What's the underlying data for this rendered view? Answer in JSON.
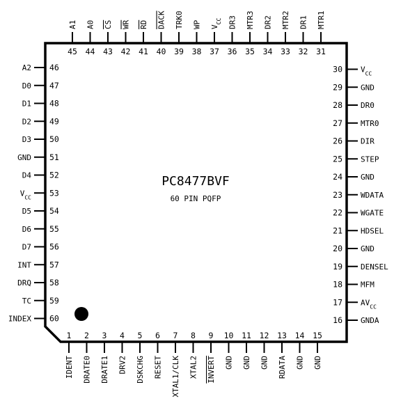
{
  "chip": {
    "part": "PC8477BVF",
    "package": "60 PIN PQFP"
  },
  "pins_bottom": [
    {
      "num": "1",
      "name": "IDENT",
      "over": false
    },
    {
      "num": "2",
      "name": "DRATE0",
      "over": false
    },
    {
      "num": "3",
      "name": "DRATE1",
      "over": false
    },
    {
      "num": "4",
      "name": "DRV2",
      "over": false
    },
    {
      "num": "5",
      "name": "DSKCHG",
      "over": false
    },
    {
      "num": "6",
      "name": "RESET",
      "over": false
    },
    {
      "num": "7",
      "name": "XTAL1/CLK",
      "over": false
    },
    {
      "num": "8",
      "name": "XTAL2",
      "over": false
    },
    {
      "num": "9",
      "name": "INVERT",
      "over": true
    },
    {
      "num": "10",
      "name": "GND",
      "over": false
    },
    {
      "num": "11",
      "name": "GND",
      "over": false
    },
    {
      "num": "12",
      "name": "GND",
      "over": false
    },
    {
      "num": "13",
      "name": "RDATA",
      "over": false
    },
    {
      "num": "14",
      "name": "GND",
      "over": false
    },
    {
      "num": "15",
      "name": "GND",
      "over": false
    }
  ],
  "pins_right": [
    {
      "num": "16",
      "name": "GNDA",
      "sub": ""
    },
    {
      "num": "17",
      "name": "AV",
      "sub": "CC"
    },
    {
      "num": "18",
      "name": "MFM",
      "sub": ""
    },
    {
      "num": "19",
      "name": "DENSEL",
      "sub": ""
    },
    {
      "num": "20",
      "name": "GND",
      "sub": ""
    },
    {
      "num": "21",
      "name": "HDSEL",
      "sub": ""
    },
    {
      "num": "22",
      "name": "WGATE",
      "sub": ""
    },
    {
      "num": "23",
      "name": "WDATA",
      "sub": ""
    },
    {
      "num": "24",
      "name": "GND",
      "sub": ""
    },
    {
      "num": "25",
      "name": "STEP",
      "sub": ""
    },
    {
      "num": "26",
      "name": "DIR",
      "sub": ""
    },
    {
      "num": "27",
      "name": "MTR0",
      "sub": ""
    },
    {
      "num": "28",
      "name": "DR0",
      "sub": ""
    },
    {
      "num": "29",
      "name": "GND",
      "sub": ""
    },
    {
      "num": "30",
      "name": "V",
      "sub": "CC"
    }
  ],
  "pins_top": [
    {
      "num": "31",
      "name": "MTR1",
      "sub": "",
      "over": false
    },
    {
      "num": "32",
      "name": "DR1",
      "sub": "",
      "over": false
    },
    {
      "num": "33",
      "name": "MTR2",
      "sub": "",
      "over": false
    },
    {
      "num": "34",
      "name": "DR2",
      "sub": "",
      "over": false
    },
    {
      "num": "35",
      "name": "MTR3",
      "sub": "",
      "over": false
    },
    {
      "num": "36",
      "name": "DR3",
      "sub": "",
      "over": false
    },
    {
      "num": "37",
      "name": "V",
      "sub": "CC",
      "over": false
    },
    {
      "num": "38",
      "name": "WP",
      "sub": "",
      "over": false
    },
    {
      "num": "39",
      "name": "TRK0",
      "sub": "",
      "over": false
    },
    {
      "num": "40",
      "name": "DACK",
      "sub": "",
      "over": true
    },
    {
      "num": "41",
      "name": "RD",
      "sub": "",
      "over": true
    },
    {
      "num": "42",
      "name": "WR",
      "sub": "",
      "over": true
    },
    {
      "num": "43",
      "name": "CS",
      "sub": "",
      "over": true
    },
    {
      "num": "44",
      "name": "A0",
      "sub": "",
      "over": false
    },
    {
      "num": "45",
      "name": "A1",
      "sub": "",
      "over": false
    }
  ],
  "pins_left": [
    {
      "num": "46",
      "name": "A2",
      "sub": ""
    },
    {
      "num": "47",
      "name": "D0",
      "sub": ""
    },
    {
      "num": "48",
      "name": "D1",
      "sub": ""
    },
    {
      "num": "49",
      "name": "D2",
      "sub": ""
    },
    {
      "num": "50",
      "name": "D3",
      "sub": ""
    },
    {
      "num": "51",
      "name": "GND",
      "sub": ""
    },
    {
      "num": "52",
      "name": "D4",
      "sub": ""
    },
    {
      "num": "53",
      "name": "V",
      "sub": "CC"
    },
    {
      "num": "54",
      "name": "D5",
      "sub": ""
    },
    {
      "num": "55",
      "name": "D6",
      "sub": ""
    },
    {
      "num": "56",
      "name": "D7",
      "sub": ""
    },
    {
      "num": "57",
      "name": "INT",
      "sub": ""
    },
    {
      "num": "58",
      "name": "DRQ",
      "sub": ""
    },
    {
      "num": "59",
      "name": "TC",
      "sub": ""
    },
    {
      "num": "60",
      "name": "INDEX",
      "sub": ""
    }
  ]
}
